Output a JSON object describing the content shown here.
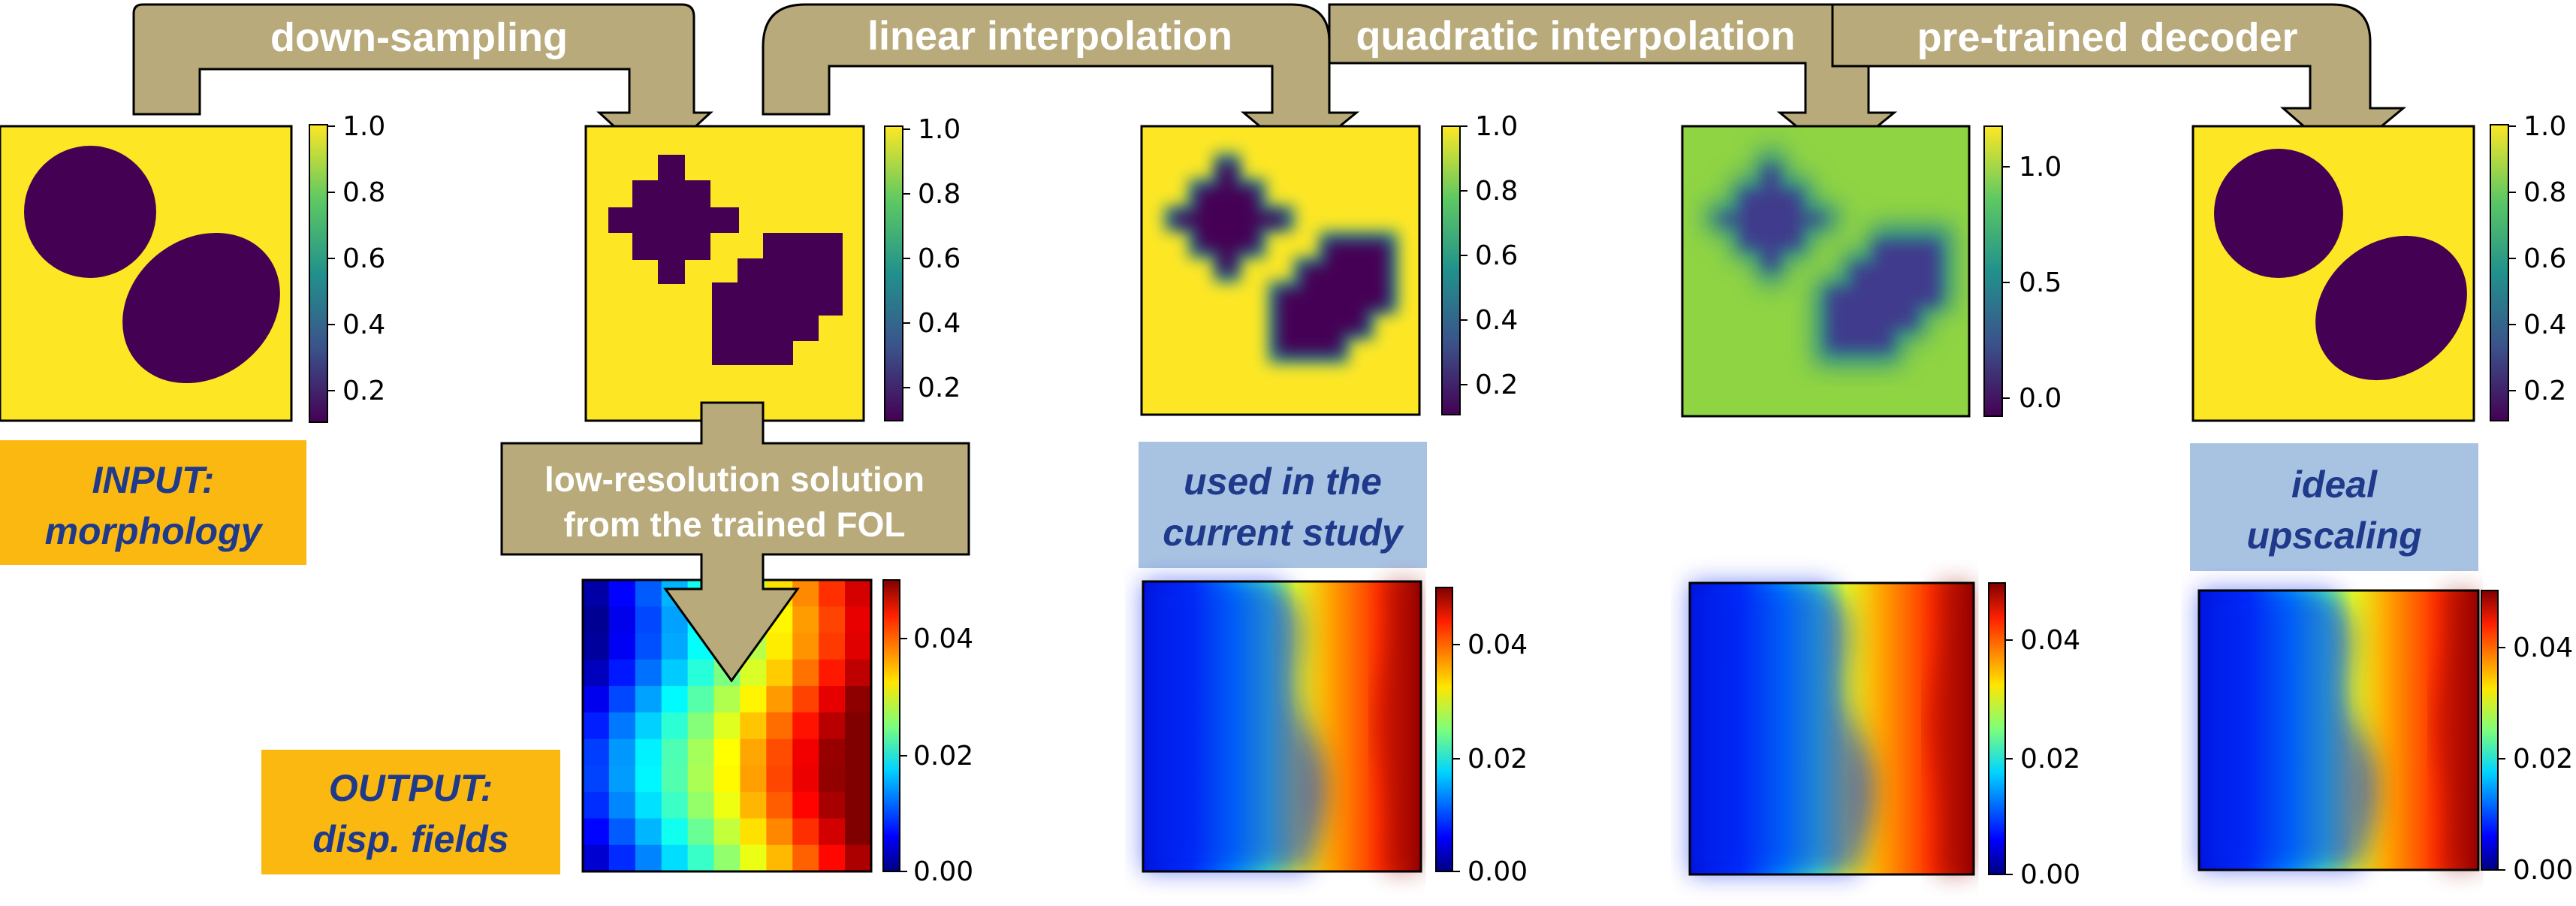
{
  "colors": {
    "arrow": "#b8aa7a",
    "arrow_stroke": "#000000",
    "input_box": "#fbb810",
    "used_box": "#a8c3e2",
    "tag_text": "#1f3a8a",
    "yellow": "#fde725",
    "purple": "#440154"
  },
  "arrows": {
    "down_sampling": "down-sampling",
    "linear_interpolation": "linear interpolation",
    "quadratic_interpolation": "quadratic interpolation",
    "pretrained_decoder": "pre-trained decoder",
    "low_res_line1": "low-resolution solution",
    "low_res_line2": "from the trained FOL"
  },
  "tags": {
    "input_line1": "INPUT:",
    "input_line2": "morphology",
    "output_line1": "OUTPUT:",
    "output_line2": "disp. fields",
    "used_line1": "used in the",
    "used_line2": "current study",
    "ideal_line1": "ideal",
    "ideal_line2": "upscaling"
  },
  "colorbars": {
    "morph_ticks": [
      "1.0",
      "0.8",
      "0.6",
      "0.4",
      "0.2"
    ],
    "quad_ticks": [
      "1.0",
      "0.5",
      "0.0"
    ],
    "disp_ticks": [
      "0.04",
      "0.02",
      "0.00"
    ]
  }
}
